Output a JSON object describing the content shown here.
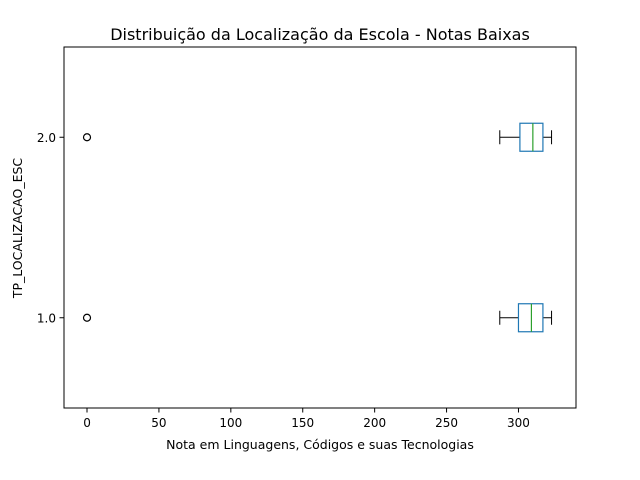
{
  "chart_data": {
    "type": "boxplot",
    "orientation": "horizontal",
    "title": "Distribuição da Localização da Escola - Notas Baixas",
    "xlabel": "Nota em Linguagens, Códigos e suas Tecnologias",
    "ylabel": "TP_LOCALIZACAO_ESC",
    "xlim": [
      -16,
      340
    ],
    "xticks": [
      0,
      50,
      100,
      150,
      200,
      250,
      300
    ],
    "ylim": [
      0.5,
      2.5
    ],
    "grid": false,
    "categories": [
      "1.0",
      "2.0"
    ],
    "boxes": [
      {
        "category": "1.0",
        "whisker_low": 287,
        "q1": 300,
        "median": 309,
        "q3": 317,
        "whisker_high": 323,
        "outliers": [
          0
        ]
      },
      {
        "category": "2.0",
        "whisker_low": 287,
        "q1": 301,
        "median": 310,
        "q3": 317,
        "whisker_high": 323,
        "outliers": [
          0
        ]
      }
    ],
    "colors": {
      "box": "#1f77b4",
      "median": "#2ca02c",
      "whisker": "#000000",
      "outlier": "#000000"
    }
  }
}
